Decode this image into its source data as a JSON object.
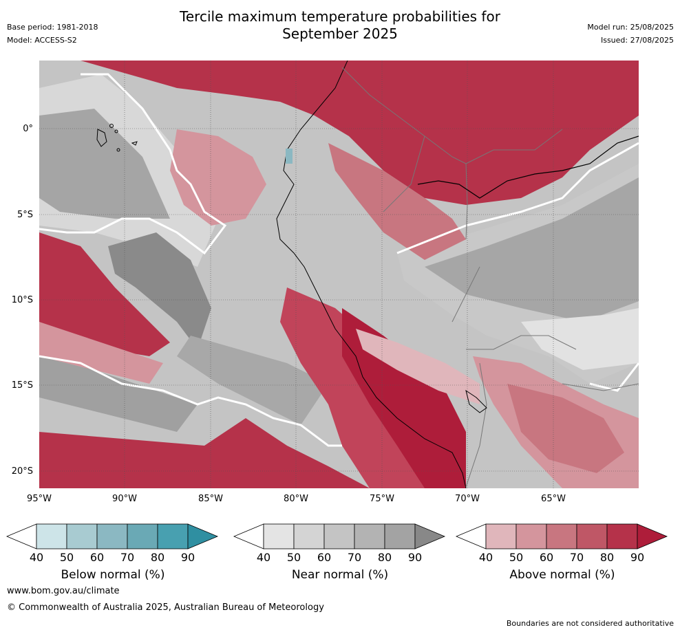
{
  "header": {
    "title_line1": "Tercile maximum temperature probabilities for",
    "title_line2": "September 2025",
    "base_period": "Base period: 1981-2018",
    "model": "Model: ACCESS-S2",
    "model_run": "Model run: 25/08/2025",
    "issued": "Issued: 27/08/2025"
  },
  "map": {
    "lat_labels": [
      "0°",
      "5°S",
      "10°S",
      "15°S",
      "20°S"
    ],
    "lon_labels": [
      "95°W",
      "90°W",
      "85°W",
      "80°W",
      "75°W",
      "70°W",
      "65°W"
    ],
    "extent": {
      "lon_min": -95,
      "lon_max": -60,
      "lat_min": -21,
      "lat_max": 4
    }
  },
  "colorbars": [
    {
      "title": "Below normal (%)",
      "ticks": [
        "40",
        "50",
        "60",
        "70",
        "80",
        "90"
      ],
      "colors": [
        "#ffffff",
        "#cde4e8",
        "#a8cbd1",
        "#8bb8c2",
        "#6aa9b5",
        "#48a0b0",
        "#2f8fa1"
      ]
    },
    {
      "title": "Near normal (%)",
      "ticks": [
        "40",
        "50",
        "60",
        "70",
        "80",
        "90"
      ],
      "colors": [
        "#ffffff",
        "#e4e4e4",
        "#d4d4d4",
        "#c4c4c4",
        "#b3b3b3",
        "#a3a3a3",
        "#888888"
      ]
    },
    {
      "title": "Above normal (%)",
      "ticks": [
        "40",
        "50",
        "60",
        "70",
        "80",
        "90"
      ],
      "colors": [
        "#ffffff",
        "#e0b6bb",
        "#d4959d",
        "#c87680",
        "#bf5766",
        "#b5324a",
        "#ae1d3a"
      ]
    }
  ],
  "footer": {
    "url": "www.bom.gov.au/climate",
    "copyright": "© Commonwealth of Australia 2025, Australian Bureau of Meteorology",
    "disclaimer": "Boundaries are not considered authoritative"
  }
}
